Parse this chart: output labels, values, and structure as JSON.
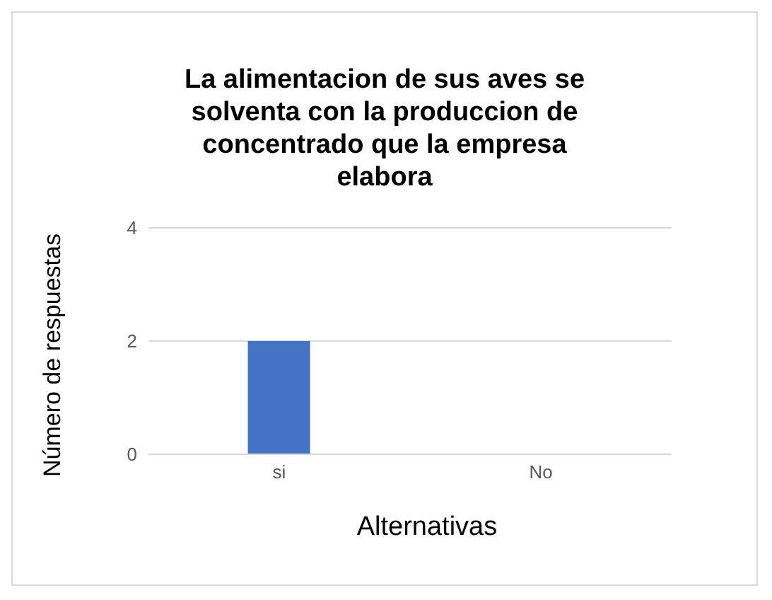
{
  "chart_data": {
    "type": "bar",
    "title": "La alimentacion de sus aves se solventa con la produccion de concentrado que la empresa elabora",
    "xlabel": "Alternativas",
    "ylabel": "Número de respuestas",
    "categories": [
      "si",
      "No"
    ],
    "series": [
      {
        "color": "#4472c4",
        "values": [
          2,
          0
        ]
      }
    ],
    "ylim": [
      0,
      4
    ],
    "yticks": [
      0,
      2,
      4
    ],
    "grid": "y",
    "legend": false
  }
}
